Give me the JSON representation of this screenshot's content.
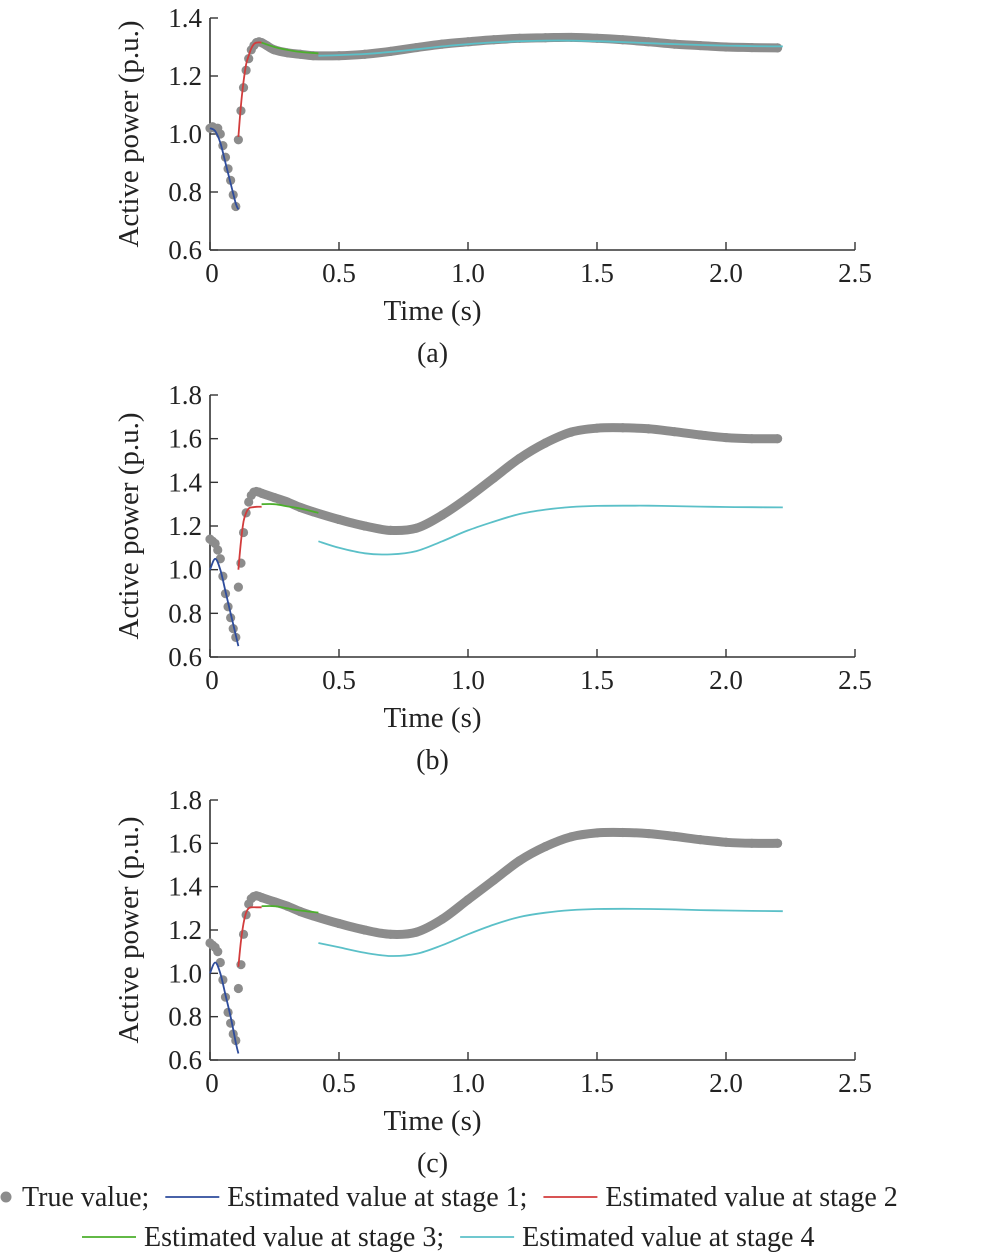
{
  "chart_data": [
    {
      "type": "line",
      "panel_label": "(a)",
      "xlabel": "Time (s)",
      "ylabel": "Active power (p.u.)",
      "xlim": [
        0,
        2.5
      ],
      "ylim": [
        0.6,
        1.4
      ],
      "xticks": [
        0,
        0.5,
        1.0,
        1.5,
        2.0,
        2.5
      ],
      "xtick_labels": [
        "0",
        "0.5",
        "1.0",
        "1.5",
        "2.0",
        "2.5"
      ],
      "yticks": [
        0.6,
        0.8,
        1.0,
        1.2,
        1.4
      ],
      "ytick_labels": [
        "0.6",
        "0.8",
        "1.0",
        "1.2",
        "1.4"
      ],
      "series": [
        {
          "name": "True value",
          "kind": "scatter",
          "color": "#8c8c8c",
          "x": [
            0.0,
            0.01,
            0.02,
            0.03,
            0.04,
            0.05,
            0.06,
            0.07,
            0.08,
            0.09,
            0.1,
            0.11,
            0.12,
            0.13,
            0.14,
            0.15,
            0.16,
            0.17,
            0.18,
            0.19,
            0.2,
            0.22,
            0.25,
            0.3,
            0.35,
            0.4,
            0.5,
            0.6,
            0.7,
            0.8,
            0.9,
            1.0,
            1.1,
            1.2,
            1.3,
            1.4,
            1.5,
            1.6,
            1.7,
            1.8,
            1.9,
            2.0,
            2.1,
            2.2
          ],
          "y": [
            1.02,
            1.025,
            1.02,
            1.02,
            1.0,
            0.96,
            0.92,
            0.88,
            0.84,
            0.79,
            0.75,
            0.98,
            1.08,
            1.16,
            1.22,
            1.26,
            1.29,
            1.305,
            1.315,
            1.318,
            1.315,
            1.305,
            1.29,
            1.28,
            1.275,
            1.27,
            1.27,
            1.275,
            1.285,
            1.298,
            1.31,
            1.318,
            1.325,
            1.33,
            1.332,
            1.333,
            1.33,
            1.325,
            1.318,
            1.31,
            1.305,
            1.3,
            1.298,
            1.297
          ]
        },
        {
          "name": "Estimated value at stage 1",
          "kind": "line",
          "color": "#2e4c9c",
          "x": [
            0.0,
            0.02,
            0.04,
            0.06,
            0.08,
            0.1,
            0.11
          ],
          "y": [
            1.02,
            1.01,
            0.97,
            0.9,
            0.83,
            0.76,
            0.74
          ]
        },
        {
          "name": "Estimated value at stage 2",
          "kind": "line",
          "color": "#d23c3c",
          "x": [
            0.11,
            0.12,
            0.13,
            0.14,
            0.15,
            0.16,
            0.17,
            0.18,
            0.19,
            0.2
          ],
          "y": [
            0.99,
            1.1,
            1.18,
            1.24,
            1.27,
            1.295,
            1.31,
            1.315,
            1.316,
            1.315
          ]
        },
        {
          "name": "Estimated value at stage 3",
          "kind": "line",
          "color": "#4caf2c",
          "x": [
            0.2,
            0.25,
            0.3,
            0.35,
            0.42
          ],
          "y": [
            1.315,
            1.3,
            1.29,
            1.283,
            1.278
          ]
        },
        {
          "name": "Estimated value at stage 4",
          "kind": "line",
          "color": "#5bc0c8",
          "x": [
            0.42,
            0.5,
            0.6,
            0.7,
            0.8,
            0.9,
            1.0,
            1.1,
            1.2,
            1.3,
            1.4,
            1.5,
            1.6,
            1.7,
            1.8,
            1.9,
            2.0,
            2.1,
            2.22
          ],
          "y": [
            1.27,
            1.272,
            1.276,
            1.283,
            1.292,
            1.302,
            1.31,
            1.316,
            1.32,
            1.322,
            1.322,
            1.32,
            1.317,
            1.313,
            1.31,
            1.307,
            1.305,
            1.303,
            1.302
          ]
        }
      ]
    },
    {
      "type": "line",
      "panel_label": "(b)",
      "xlabel": "Time (s)",
      "ylabel": "Active power (p.u.)",
      "xlim": [
        0,
        2.5
      ],
      "ylim": [
        0.6,
        1.8
      ],
      "xticks": [
        0,
        0.5,
        1.0,
        1.5,
        2.0,
        2.5
      ],
      "xtick_labels": [
        "0",
        "0.5",
        "1.0",
        "1.5",
        "2.0",
        "2.5"
      ],
      "yticks": [
        0.6,
        0.8,
        1.0,
        1.2,
        1.4,
        1.6,
        1.8
      ],
      "ytick_labels": [
        "0.6",
        "0.8",
        "1.0",
        "1.2",
        "1.4",
        "1.6",
        "1.8"
      ],
      "series": [
        {
          "name": "True value",
          "kind": "scatter",
          "color": "#8c8c8c",
          "x": [
            0.0,
            0.01,
            0.02,
            0.03,
            0.04,
            0.05,
            0.06,
            0.07,
            0.08,
            0.09,
            0.1,
            0.11,
            0.12,
            0.13,
            0.14,
            0.15,
            0.16,
            0.17,
            0.18,
            0.19,
            0.2,
            0.25,
            0.3,
            0.35,
            0.4,
            0.5,
            0.6,
            0.7,
            0.8,
            0.9,
            1.0,
            1.1,
            1.2,
            1.3,
            1.4,
            1.5,
            1.6,
            1.7,
            1.8,
            1.9,
            2.0,
            2.1,
            2.2
          ],
          "y": [
            1.14,
            1.13,
            1.12,
            1.09,
            1.05,
            0.97,
            0.89,
            0.83,
            0.78,
            0.73,
            0.69,
            0.92,
            1.03,
            1.17,
            1.26,
            1.31,
            1.34,
            1.355,
            1.358,
            1.355,
            1.35,
            1.33,
            1.31,
            1.285,
            1.265,
            1.23,
            1.2,
            1.18,
            1.19,
            1.25,
            1.33,
            1.42,
            1.51,
            1.58,
            1.63,
            1.648,
            1.65,
            1.645,
            1.632,
            1.617,
            1.605,
            1.6,
            1.6
          ]
        },
        {
          "name": "Estimated value at stage 1",
          "kind": "line",
          "color": "#2e4c9c",
          "x": [
            0.0,
            0.02,
            0.04,
            0.06,
            0.08,
            0.1,
            0.11
          ],
          "y": [
            1.0,
            1.05,
            1.0,
            0.9,
            0.8,
            0.7,
            0.65
          ]
        },
        {
          "name": "Estimated value at stage 2",
          "kind": "line",
          "color": "#d23c3c",
          "x": [
            0.11,
            0.12,
            0.13,
            0.14,
            0.15,
            0.16,
            0.18,
            0.2
          ],
          "y": [
            1.0,
            1.13,
            1.22,
            1.26,
            1.28,
            1.285,
            1.288,
            1.288
          ]
        },
        {
          "name": "Estimated value at stage 3",
          "kind": "line",
          "color": "#4caf2c",
          "x": [
            0.2,
            0.25,
            0.3,
            0.35,
            0.42
          ],
          "y": [
            1.3,
            1.3,
            1.29,
            1.28,
            1.26
          ]
        },
        {
          "name": "Estimated value at stage 4",
          "kind": "line",
          "color": "#5bc0c8",
          "x": [
            0.42,
            0.5,
            0.6,
            0.7,
            0.8,
            0.9,
            1.0,
            1.1,
            1.2,
            1.3,
            1.4,
            1.5,
            1.6,
            1.7,
            1.8,
            1.9,
            2.0,
            2.1,
            2.22
          ],
          "y": [
            1.13,
            1.1,
            1.075,
            1.07,
            1.085,
            1.13,
            1.18,
            1.22,
            1.255,
            1.275,
            1.287,
            1.292,
            1.293,
            1.293,
            1.291,
            1.289,
            1.287,
            1.286,
            1.285
          ]
        }
      ]
    },
    {
      "type": "line",
      "panel_label": "(c)",
      "xlabel": "Time (s)",
      "ylabel": "Active power (p.u.)",
      "xlim": [
        0,
        2.5
      ],
      "ylim": [
        0.6,
        1.8
      ],
      "xticks": [
        0,
        0.5,
        1.0,
        1.5,
        2.0,
        2.5
      ],
      "xtick_labels": [
        "0",
        "0.5",
        "1.0",
        "1.5",
        "2.0",
        "2.5"
      ],
      "yticks": [
        0.6,
        0.8,
        1.0,
        1.2,
        1.4,
        1.6,
        1.8
      ],
      "ytick_labels": [
        "0.6",
        "0.8",
        "1.0",
        "1.2",
        "1.4",
        "1.6",
        "1.8"
      ],
      "series": [
        {
          "name": "True value",
          "kind": "scatter",
          "color": "#8c8c8c",
          "x": [
            0.0,
            0.01,
            0.02,
            0.03,
            0.04,
            0.05,
            0.06,
            0.07,
            0.08,
            0.09,
            0.1,
            0.11,
            0.12,
            0.13,
            0.14,
            0.15,
            0.16,
            0.17,
            0.18,
            0.19,
            0.2,
            0.25,
            0.3,
            0.35,
            0.4,
            0.5,
            0.6,
            0.7,
            0.8,
            0.9,
            1.0,
            1.1,
            1.2,
            1.3,
            1.4,
            1.5,
            1.6,
            1.7,
            1.8,
            1.9,
            2.0,
            2.1,
            2.2
          ],
          "y": [
            1.14,
            1.13,
            1.12,
            1.1,
            1.05,
            0.97,
            0.89,
            0.82,
            0.77,
            0.72,
            0.69,
            0.93,
            1.04,
            1.18,
            1.27,
            1.32,
            1.345,
            1.355,
            1.358,
            1.355,
            1.35,
            1.33,
            1.31,
            1.285,
            1.265,
            1.23,
            1.2,
            1.18,
            1.19,
            1.25,
            1.34,
            1.43,
            1.52,
            1.585,
            1.63,
            1.648,
            1.65,
            1.645,
            1.632,
            1.617,
            1.605,
            1.6,
            1.6
          ]
        },
        {
          "name": "Estimated value at stage 1",
          "kind": "line",
          "color": "#2e4c9c",
          "x": [
            0.0,
            0.02,
            0.04,
            0.06,
            0.08,
            0.1,
            0.11
          ],
          "y": [
            1.0,
            1.05,
            1.0,
            0.9,
            0.8,
            0.68,
            0.63
          ]
        },
        {
          "name": "Estimated value at stage 2",
          "kind": "line",
          "color": "#d23c3c",
          "x": [
            0.11,
            0.12,
            0.13,
            0.14,
            0.15,
            0.16,
            0.18,
            0.2
          ],
          "y": [
            1.03,
            1.15,
            1.23,
            1.28,
            1.3,
            1.305,
            1.305,
            1.305
          ]
        },
        {
          "name": "Estimated value at stage 3",
          "kind": "line",
          "color": "#4caf2c",
          "x": [
            0.2,
            0.25,
            0.3,
            0.35,
            0.42
          ],
          "y": [
            1.31,
            1.31,
            1.3,
            1.29,
            1.28
          ]
        },
        {
          "name": "Estimated value at stage 4",
          "kind": "line",
          "color": "#5bc0c8",
          "x": [
            0.42,
            0.5,
            0.6,
            0.7,
            0.8,
            0.9,
            1.0,
            1.1,
            1.2,
            1.3,
            1.4,
            1.5,
            1.6,
            1.7,
            1.8,
            1.9,
            2.0,
            2.1,
            2.22
          ],
          "y": [
            1.14,
            1.12,
            1.095,
            1.08,
            1.09,
            1.13,
            1.18,
            1.225,
            1.26,
            1.28,
            1.292,
            1.297,
            1.298,
            1.297,
            1.295,
            1.292,
            1.29,
            1.288,
            1.287
          ]
        }
      ]
    }
  ],
  "legend": {
    "line1": [
      {
        "kind": "marker",
        "color": "#8c8c8c",
        "label": "True value;"
      },
      {
        "kind": "line",
        "color": "#2e4c9c",
        "label": "Estimated value at stage 1;"
      },
      {
        "kind": "line",
        "color": "#d23c3c",
        "label": "Estimated value at stage 2"
      }
    ],
    "line2": [
      {
        "kind": "line",
        "color": "#4caf2c",
        "label": "Estimated value at stage 3;"
      },
      {
        "kind": "line",
        "color": "#5bc0c8",
        "label": "Estimated value at stage 4"
      }
    ]
  }
}
